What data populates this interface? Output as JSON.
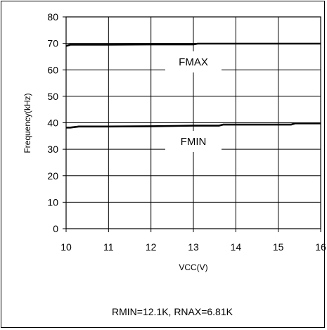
{
  "chart_data": {
    "type": "line",
    "xlabel": "VCC(V)",
    "ylabel": "Frequency(kHz)",
    "xlim": [
      10,
      16
    ],
    "ylim": [
      0,
      80
    ],
    "x_ticks": [
      "10",
      "11",
      "12",
      "13",
      "14",
      "15",
      "16"
    ],
    "y_ticks": [
      "0",
      "10",
      "20",
      "30",
      "40",
      "50",
      "60",
      "70",
      "80"
    ],
    "grid": true,
    "series": [
      {
        "name": "FMAX",
        "x": [
          10,
          10.1,
          10.5,
          11,
          12,
          13,
          13.1,
          14,
          15,
          16
        ],
        "values": [
          69,
          69.5,
          69.5,
          69.5,
          69.6,
          69.6,
          69.9,
          69.9,
          69.9,
          69.9
        ]
      },
      {
        "name": "FMIN",
        "x": [
          10,
          10.1,
          10.3,
          11,
          12,
          13,
          13.6,
          13.7,
          14,
          15,
          15.3,
          15.4,
          16
        ],
        "values": [
          38.2,
          38.2,
          38.6,
          38.6,
          38.7,
          38.9,
          38.9,
          39.3,
          39.3,
          39.3,
          39.3,
          39.8,
          39.8
        ]
      }
    ],
    "annotation": "RMIN=12.1K, RNAX=6.81K",
    "line_color": "#000000"
  }
}
